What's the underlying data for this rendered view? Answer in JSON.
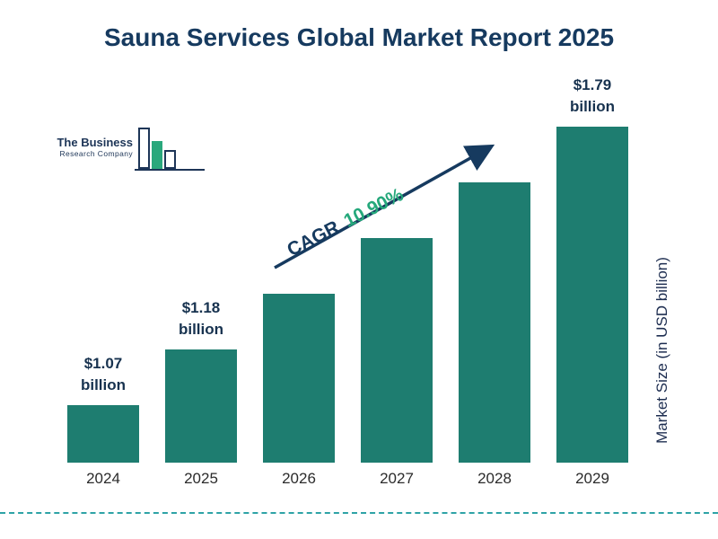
{
  "title": "Sauna Services Global Market Report 2025",
  "logo": {
    "line1": "The Business",
    "line2": "Research Company"
  },
  "annotation": {
    "cagr_label": "CAGR",
    "cagr_value": "10.90%"
  },
  "colors": {
    "bar": "#1E7D70",
    "title_navy": "#163A5F",
    "cagr_green": "#25A87B",
    "dashed_line": "#2EA3A6"
  },
  "chart_data": {
    "type": "bar",
    "title": "Sauna Services Global Market Report 2025",
    "categories": [
      "2024",
      "2025",
      "2026",
      "2027",
      "2028",
      "2029"
    ],
    "values": [
      1.07,
      1.18,
      1.31,
      1.45,
      1.61,
      1.79
    ],
    "values_estimated": [
      false,
      false,
      true,
      true,
      true,
      false
    ],
    "value_labels": [
      {
        "amount": "$1.07",
        "unit": "billion"
      },
      {
        "amount": "$1.18",
        "unit": "billion"
      },
      null,
      null,
      null,
      {
        "amount": "$1.79",
        "unit": "billion"
      }
    ],
    "xlabel": "",
    "ylabel": "Market Size (in USD billion)",
    "cagr": "10.90%",
    "legend": false,
    "grid": false,
    "bar_color": "#1E7D70"
  }
}
